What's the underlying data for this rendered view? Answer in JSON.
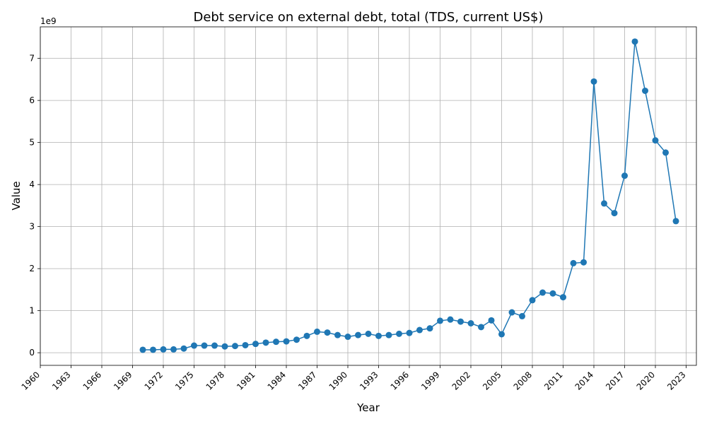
{
  "chart_data": {
    "type": "line",
    "title": "Debt service on external debt, total (TDS, current US$)",
    "xlabel": "Year",
    "ylabel": "Value",
    "y_offset_text": "1e9",
    "xlim": [
      1960,
      2024
    ],
    "ylim": [
      -0.3,
      7.75
    ],
    "y_scale_multiplier": 1000000000,
    "x_ticks": [
      1960,
      1963,
      1966,
      1969,
      1972,
      1975,
      1978,
      1981,
      1984,
      1987,
      1990,
      1993,
      1996,
      1999,
      2002,
      2005,
      2008,
      2011,
      2014,
      2017,
      2020,
      2023
    ],
    "y_ticks": [
      0,
      1,
      2,
      3,
      4,
      5,
      6,
      7
    ],
    "grid": true,
    "color": "#1f77b4",
    "marker": "circle",
    "x": [
      1970,
      1971,
      1972,
      1973,
      1974,
      1975,
      1976,
      1977,
      1978,
      1979,
      1980,
      1981,
      1982,
      1983,
      1984,
      1985,
      1986,
      1987,
      1988,
      1989,
      1990,
      1991,
      1992,
      1993,
      1994,
      1995,
      1996,
      1997,
      1998,
      1999,
      2000,
      2001,
      2002,
      2003,
      2004,
      2005,
      2006,
      2007,
      2008,
      2009,
      2010,
      2011,
      2012,
      2013,
      2014,
      2015,
      2016,
      2017,
      2018,
      2019,
      2020,
      2021,
      2022
    ],
    "series": [
      {
        "values": [
          0.07,
          0.07,
          0.08,
          0.08,
          0.1,
          0.17,
          0.17,
          0.17,
          0.15,
          0.16,
          0.18,
          0.21,
          0.24,
          0.26,
          0.27,
          0.31,
          0.4,
          0.5,
          0.48,
          0.42,
          0.38,
          0.42,
          0.45,
          0.4,
          0.42,
          0.45,
          0.47,
          0.54,
          0.58,
          0.76,
          0.79,
          0.74,
          0.7,
          0.61,
          0.77,
          0.44,
          0.96,
          0.87,
          1.25,
          1.43,
          1.41,
          1.32,
          2.13,
          2.15,
          6.45,
          3.55,
          3.32,
          4.21,
          7.4,
          6.23,
          5.05,
          4.76,
          3.13
        ]
      }
    ]
  }
}
